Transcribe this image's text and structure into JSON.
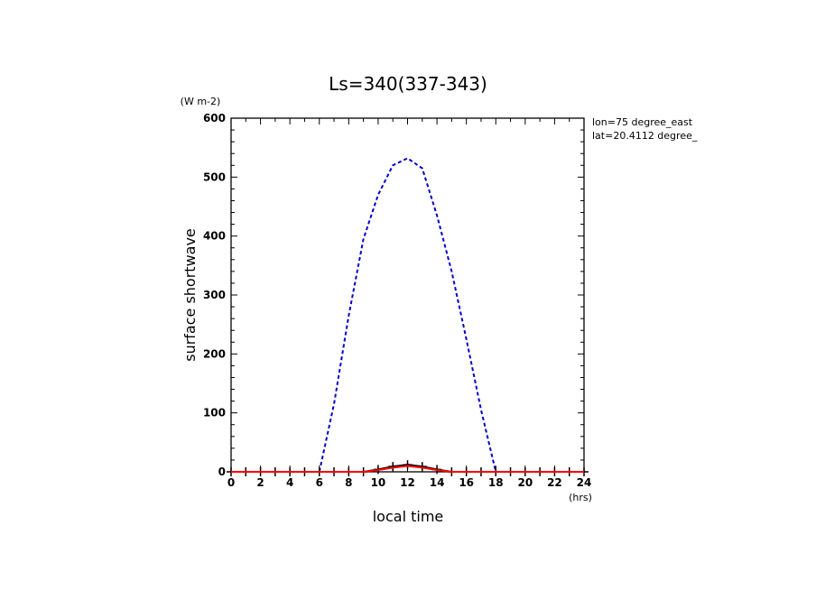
{
  "chart_data": {
    "type": "line",
    "title": "Ls=340(337-343)",
    "ylabel": "surface shortwave",
    "yunit": "(W m-2)",
    "xlabel": "local time",
    "xunit": "(hrs)",
    "annotations": [
      "lon=75 degree_east",
      "lat=20.4112 degree_"
    ],
    "xlim": [
      0,
      24
    ],
    "ylim": [
      0,
      600
    ],
    "xticks": [
      0,
      2,
      4,
      6,
      8,
      10,
      12,
      14,
      16,
      18,
      20,
      22,
      24
    ],
    "yticks": [
      0,
      100,
      200,
      300,
      400,
      500,
      600
    ],
    "grid": false,
    "series": [
      {
        "color": "#0000cc",
        "style": "dashed",
        "x": [
          0,
          1,
          2,
          3,
          4,
          5,
          6,
          7,
          8,
          9,
          10,
          11,
          12,
          13,
          14,
          15,
          16,
          17,
          18,
          19,
          20,
          21,
          22,
          23,
          24
        ],
        "values": [
          0,
          0,
          0,
          0,
          0,
          0,
          0,
          115,
          265,
          395,
          470,
          520,
          532,
          515,
          435,
          340,
          225,
          105,
          0,
          0,
          0,
          0,
          0,
          0,
          0
        ]
      },
      {
        "color": "#000000",
        "style": "solid-plus",
        "x": [
          0,
          1,
          2,
          3,
          4,
          5,
          6,
          7,
          8,
          9,
          10,
          11,
          12,
          13,
          14,
          15,
          16,
          17,
          18,
          19,
          20,
          21,
          22,
          23,
          24
        ],
        "values": [
          0,
          0,
          0,
          0,
          0,
          0,
          0,
          0,
          0,
          0,
          4,
          9,
          12,
          9,
          4,
          0,
          0,
          0,
          0,
          0,
          0,
          0,
          0,
          0,
          0
        ]
      },
      {
        "color": "#ff0000",
        "style": "solid",
        "x": [
          0,
          1,
          2,
          3,
          4,
          5,
          6,
          7,
          8,
          9,
          10,
          11,
          12,
          13,
          14,
          15,
          16,
          17,
          18,
          19,
          20,
          21,
          22,
          23,
          24
        ],
        "values": [
          0,
          0,
          0,
          0,
          0,
          0,
          0,
          0,
          0,
          0,
          3,
          7,
          10,
          7,
          3,
          0,
          0,
          0,
          0,
          0,
          0,
          0,
          0,
          0,
          0
        ]
      }
    ]
  }
}
